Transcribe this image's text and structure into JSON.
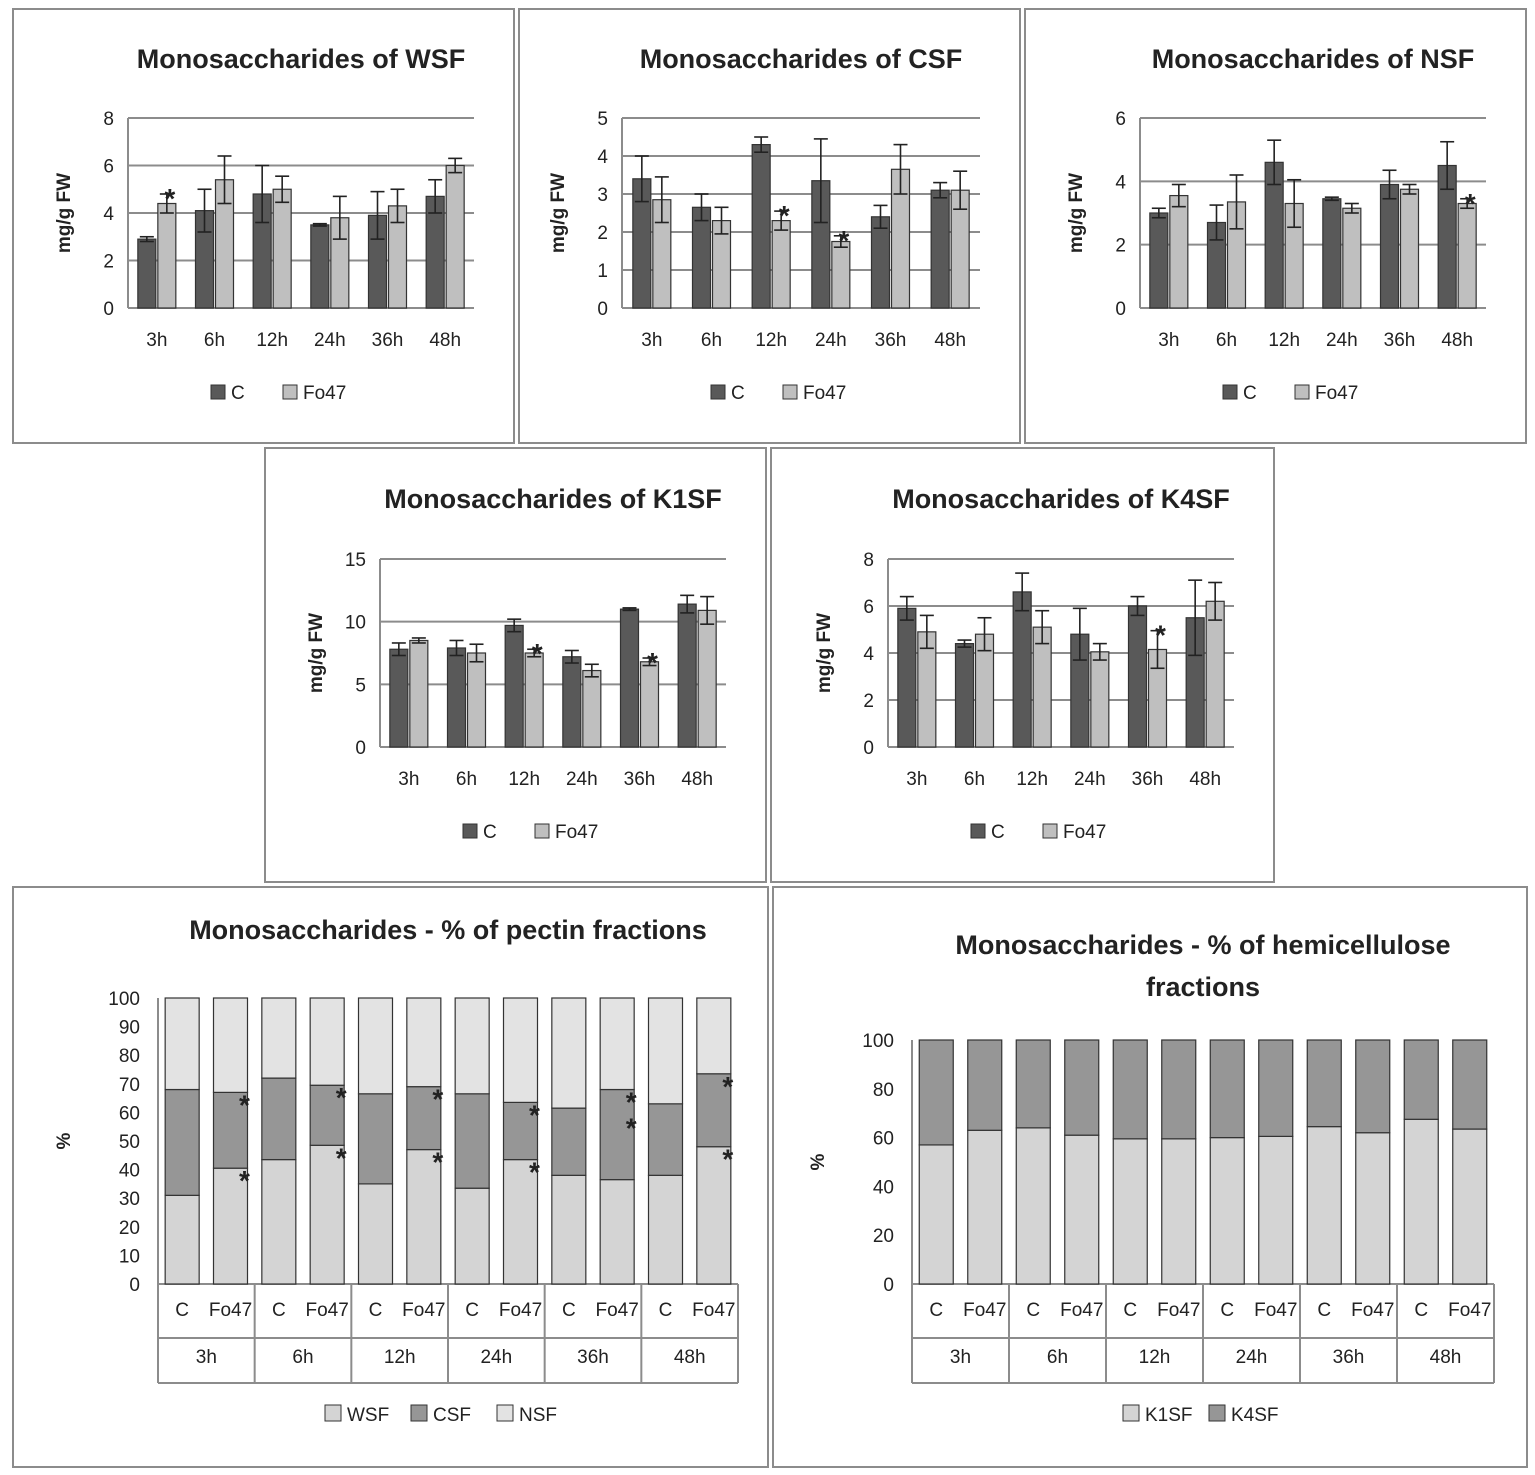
{
  "colors": {
    "C": "#595959",
    "Fo47": "#bfbfbf",
    "WSF": "#d4d4d4",
    "CSF": "#969696",
    "NSF": "#e3e3e3",
    "K1SF": "#d4d4d4",
    "K4SF": "#969696",
    "grid": "#8c8c8c"
  },
  "chart_data": [
    {
      "type": "bar",
      "title": "Monosaccharides of WSF",
      "ylabel": "mg/g FW",
      "ylim": [
        0,
        8
      ],
      "yticks": [
        0,
        2,
        4,
        6,
        8
      ],
      "categories": [
        "3h",
        "6h",
        "12h",
        "24h",
        "36h",
        "48h"
      ],
      "series": [
        {
          "name": "C",
          "values": [
            2.9,
            4.1,
            4.8,
            3.5,
            3.9,
            4.7
          ],
          "errors": [
            0.1,
            0.9,
            1.2,
            0.05,
            1.0,
            0.7
          ]
        },
        {
          "name": "Fo47",
          "values": [
            4.4,
            5.4,
            5.0,
            3.8,
            4.3,
            6.0
          ],
          "errors": [
            0.4,
            1.0,
            0.55,
            0.9,
            0.7,
            0.3
          ]
        }
      ],
      "annotations": [
        {
          "category": "3h",
          "series": "Fo47",
          "text": "*"
        }
      ],
      "legend": "bottom"
    },
    {
      "type": "bar",
      "title": "Monosaccharides of CSF",
      "ylabel": "mg/g FW",
      "ylim": [
        0,
        5
      ],
      "yticks": [
        0,
        1,
        2,
        3,
        4,
        5
      ],
      "categories": [
        "3h",
        "6h",
        "12h",
        "24h",
        "36h",
        "48h"
      ],
      "series": [
        {
          "name": "C",
          "values": [
            3.4,
            2.65,
            4.3,
            3.35,
            2.4,
            3.1
          ],
          "errors": [
            0.6,
            0.35,
            0.2,
            1.1,
            0.3,
            0.2
          ]
        },
        {
          "name": "Fo47",
          "values": [
            2.85,
            2.3,
            2.3,
            1.75,
            3.65,
            3.1
          ],
          "errors": [
            0.6,
            0.35,
            0.25,
            0.15,
            0.65,
            0.5
          ]
        }
      ],
      "annotations": [
        {
          "category": "12h",
          "series": "Fo47",
          "text": "*"
        },
        {
          "category": "24h",
          "series": "Fo47",
          "text": "*"
        }
      ],
      "legend": "bottom"
    },
    {
      "type": "bar",
      "title": "Monosaccharides of NSF",
      "ylabel": "mg/g FW",
      "ylim": [
        0,
        6
      ],
      "yticks": [
        0,
        2,
        4,
        6
      ],
      "categories": [
        "3h",
        "6h",
        "12h",
        "24h",
        "36h",
        "48h"
      ],
      "series": [
        {
          "name": "C",
          "values": [
            3.0,
            2.7,
            4.6,
            3.45,
            3.9,
            4.5
          ],
          "errors": [
            0.15,
            0.55,
            0.7,
            0.05,
            0.45,
            0.75
          ]
        },
        {
          "name": "Fo47",
          "values": [
            3.55,
            3.35,
            3.3,
            3.15,
            3.75,
            3.3
          ],
          "errors": [
            0.35,
            0.85,
            0.75,
            0.15,
            0.15,
            0.15
          ]
        }
      ],
      "annotations": [
        {
          "category": "48h",
          "series": "Fo47",
          "text": "*"
        }
      ],
      "legend": "bottom"
    },
    {
      "type": "bar",
      "title": "Monosaccharides of K1SF",
      "ylabel": "mg/g FW",
      "ylim": [
        0,
        15
      ],
      "yticks": [
        0,
        5,
        10,
        15
      ],
      "categories": [
        "3h",
        "6h",
        "12h",
        "24h",
        "36h",
        "48h"
      ],
      "series": [
        {
          "name": "C",
          "values": [
            7.8,
            7.9,
            9.7,
            7.2,
            11.0,
            11.4
          ],
          "errors": [
            0.5,
            0.6,
            0.5,
            0.5,
            0.1,
            0.7
          ]
        },
        {
          "name": "Fo47",
          "values": [
            8.5,
            7.5,
            7.5,
            6.1,
            6.8,
            10.9
          ],
          "errors": [
            0.2,
            0.7,
            0.3,
            0.5,
            0.3,
            1.1
          ]
        }
      ],
      "annotations": [
        {
          "category": "12h",
          "series": "Fo47",
          "text": "*"
        },
        {
          "category": "36h",
          "series": "Fo47",
          "text": "*"
        }
      ],
      "legend": "bottom"
    },
    {
      "type": "bar",
      "title": "Monosaccharides of K4SF",
      "ylabel": "mg/g FW",
      "ylim": [
        0,
        8
      ],
      "yticks": [
        0,
        2,
        4,
        6,
        8
      ],
      "categories": [
        "3h",
        "6h",
        "12h",
        "24h",
        "36h",
        "48h"
      ],
      "series": [
        {
          "name": "C",
          "values": [
            5.9,
            4.4,
            6.6,
            4.8,
            6.0,
            5.5
          ],
          "errors": [
            0.5,
            0.15,
            0.8,
            1.1,
            0.4,
            1.6
          ]
        },
        {
          "name": "Fo47",
          "values": [
            4.9,
            4.8,
            5.1,
            4.05,
            4.15,
            6.2
          ],
          "errors": [
            0.7,
            0.7,
            0.7,
            0.35,
            0.8,
            0.8
          ]
        }
      ],
      "annotations": [
        {
          "category": "36h",
          "series": "Fo47",
          "text": "*"
        }
      ],
      "legend": "bottom"
    },
    {
      "type": "stacked_bar",
      "title": "Monosaccharides - % of pectin fractions",
      "ylabel": "%",
      "ylim": [
        0,
        100
      ],
      "yticks": [
        0,
        10,
        20,
        30,
        40,
        50,
        60,
        70,
        80,
        90,
        100
      ],
      "groups": [
        "3h",
        "6h",
        "12h",
        "24h",
        "36h",
        "48h"
      ],
      "subcategories": [
        "C",
        "Fo47"
      ],
      "series": [
        {
          "name": "WSF",
          "values": [
            31,
            40.5,
            43.5,
            48.5,
            35,
            47,
            33.5,
            43.5,
            38,
            36.5,
            38,
            48
          ]
        },
        {
          "name": "CSF",
          "values": [
            37,
            26.5,
            28.5,
            21,
            31.5,
            22,
            33,
            20,
            23.5,
            31.5,
            25,
            25.5
          ]
        },
        {
          "name": "NSF",
          "values": [
            32,
            33,
            28,
            30.5,
            33.5,
            31,
            33.5,
            36.5,
            38.5,
            32,
            37,
            26.5
          ]
        }
      ],
      "annotations": [
        {
          "bar": 1,
          "series": "CSF",
          "text": "*"
        },
        {
          "bar": 1,
          "series": "WSF",
          "text": "*"
        },
        {
          "bar": 3,
          "series": "CSF",
          "text": "*"
        },
        {
          "bar": 3,
          "series": "WSF",
          "text": "*"
        },
        {
          "bar": 5,
          "series": "CSF",
          "text": "*"
        },
        {
          "bar": 5,
          "series": "WSF",
          "text": "*"
        },
        {
          "bar": 7,
          "series": "CSF",
          "text": "*"
        },
        {
          "bar": 7,
          "series": "WSF",
          "text": "*"
        },
        {
          "bar": 9,
          "series": "CSF",
          "text": "*"
        },
        {
          "bar": 9,
          "series": "CSF",
          "text": "*"
        },
        {
          "bar": 11,
          "series": "CSF",
          "text": "*"
        },
        {
          "bar": 11,
          "series": "WSF",
          "text": "*"
        }
      ],
      "legend": "bottom"
    },
    {
      "type": "stacked_bar",
      "title_lines": [
        "Monosaccharides - % of hemicellulose",
        "fractions"
      ],
      "ylabel": "%",
      "ylim": [
        0,
        100
      ],
      "yticks": [
        0,
        20,
        40,
        60,
        80,
        100
      ],
      "groups": [
        "3h",
        "6h",
        "12h",
        "24h",
        "36h",
        "48h"
      ],
      "subcategories": [
        "C",
        "Fo47"
      ],
      "series": [
        {
          "name": "K1SF",
          "values": [
            57,
            63,
            64,
            61,
            59.5,
            59.5,
            60,
            60.5,
            64.5,
            62,
            67.5,
            63.5
          ]
        },
        {
          "name": "K4SF",
          "values": [
            43,
            37,
            36,
            39,
            40.5,
            40.5,
            40,
            39.5,
            35.5,
            38,
            32.5,
            36.5
          ]
        }
      ],
      "legend": "bottom"
    }
  ]
}
